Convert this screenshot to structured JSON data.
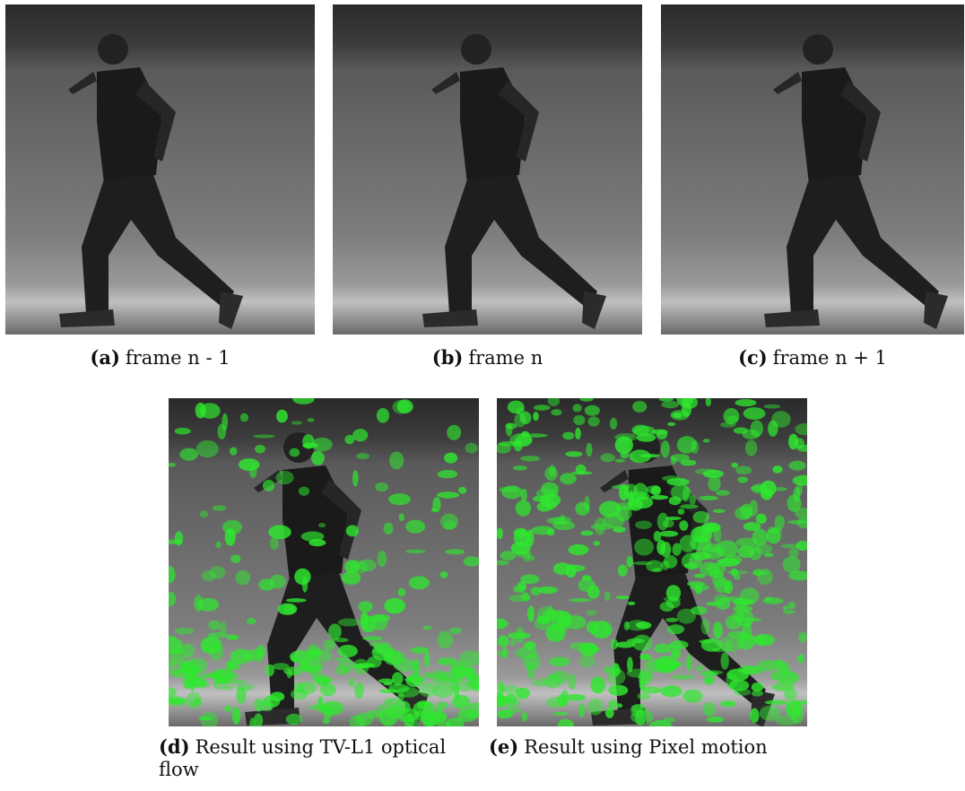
{
  "figures": [
    {
      "label": "(a)",
      "caption": "frame n - 1"
    },
    {
      "label": "(b)",
      "caption": "frame n"
    },
    {
      "label": "(c)",
      "caption": "frame n + 1"
    },
    {
      "label": "(d)",
      "caption": "Result using TV-L1 optical flow"
    },
    {
      "label": "(e)",
      "caption": "Result using Pixel motion"
    }
  ]
}
